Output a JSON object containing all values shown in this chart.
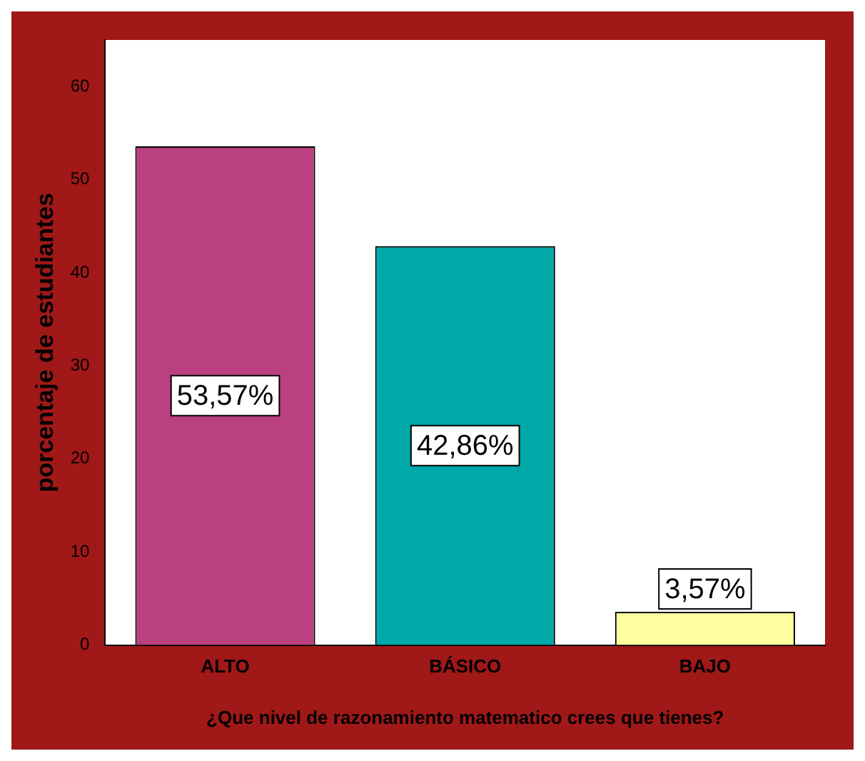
{
  "chart_data": {
    "type": "bar",
    "xlabel": "¿Que nivel de razonamiento matematico crees que tienes?",
    "ylabel": "porcentaje de estudiantes",
    "categories": [
      "ALTO",
      "BÁSICO",
      "BAJO"
    ],
    "values": [
      53.57,
      42.86,
      3.57
    ],
    "colors": [
      "#bb4080",
      "#00a8a8",
      "#ffffa0"
    ],
    "value_labels": [
      "53,57%",
      "42,86%",
      "3,57%"
    ],
    "ylim": [
      0,
      65
    ],
    "yticks": [
      0,
      10,
      20,
      30,
      40,
      50,
      60
    ],
    "grid": false,
    "legend": false
  }
}
